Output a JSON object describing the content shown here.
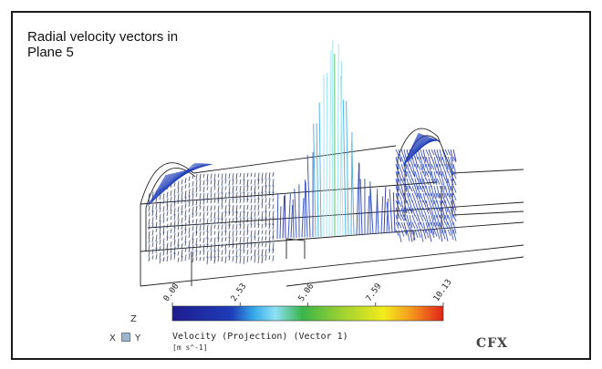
{
  "figure": {
    "caption": "Radial velocity vectors in Plane 5"
  },
  "legend": {
    "title": "Velocity (Projection) (Vector 1)",
    "unit": "[m s^-1]",
    "ticks": [
      "0.00",
      "2.53",
      "5.06",
      "7.59",
      "10.13"
    ],
    "colormap": [
      "#1e1c8e",
      "#1e3db8",
      "#35a9e8",
      "#8ee0f5",
      "#39b54a",
      "#9bd032",
      "#f2ec1c",
      "#f59a1e",
      "#e2231a"
    ]
  },
  "axis_triad": {
    "x": "X",
    "y": "Y",
    "z": "Z"
  },
  "logo": "CFX"
}
